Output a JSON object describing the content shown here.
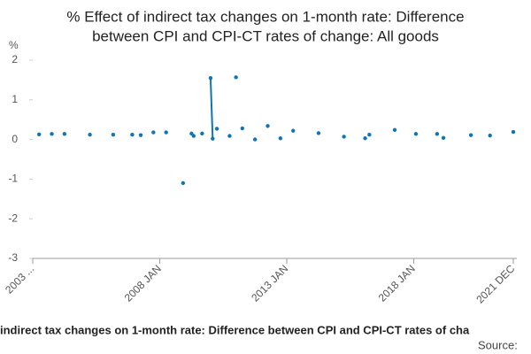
{
  "chart_data": {
    "type": "line",
    "title": [
      "% Effect of indirect tax changes on 1-month rate: Difference",
      "between CPI and CPI-CT rates of change: All goods"
    ],
    "y_label": "%",
    "footer": "indirect tax changes on 1-month rate: Difference between CPI and CPI-CT rates of cha",
    "source": "Source:",
    "x": [
      "2003 APR",
      "2003 OCT",
      "2004 APR",
      "2005 APR",
      "2006 MAR",
      "2006 DEC",
      "2007 APR",
      "2007 OCT",
      "2008 APR",
      "2008 DEC",
      "2009 APR",
      "2009 MAY",
      "2009 SEP",
      "2010 JAN",
      "2010 FEB",
      "2010 APR",
      "2010 OCT",
      "2011 JAN",
      "2011 APR",
      "2011 OCT",
      "2012 APR",
      "2012 OCT",
      "2013 APR",
      "2014 APR",
      "2015 APR",
      "2016 FEB",
      "2016 APR",
      "2017 APR",
      "2018 FEB",
      "2018 DEC",
      "2019 MAR",
      "2020 APR",
      "2021 JAN",
      "2021 DEC"
    ],
    "series": [
      {
        "color": "#0f75b3",
        "values": [
          0.13,
          0.14,
          0.14,
          0.12,
          0.12,
          0.12,
          0.11,
          0.18,
          0.18,
          -1.1,
          0.15,
          0.09,
          0.15,
          1.55,
          0.02,
          0.27,
          0.09,
          1.57,
          0.28,
          0.0,
          0.34,
          0.03,
          0.22,
          0.16,
          0.07,
          0.03,
          0.12,
          0.24,
          0.14,
          0.14,
          0.04,
          0.11,
          0.1,
          0.19
        ]
      }
    ],
    "xlim": [
      "2003 JAN",
      "2021 DEC"
    ],
    "xticks": [
      {
        "value": "2003 JAN",
        "label": "2003 ..."
      },
      "2008 JAN",
      "2013 JAN",
      "2018 JAN",
      "2021 DEC"
    ],
    "ylim": [
      -3,
      2
    ],
    "yticks": [
      2,
      1,
      0,
      -1,
      -2,
      -3
    ],
    "grid": false
  }
}
